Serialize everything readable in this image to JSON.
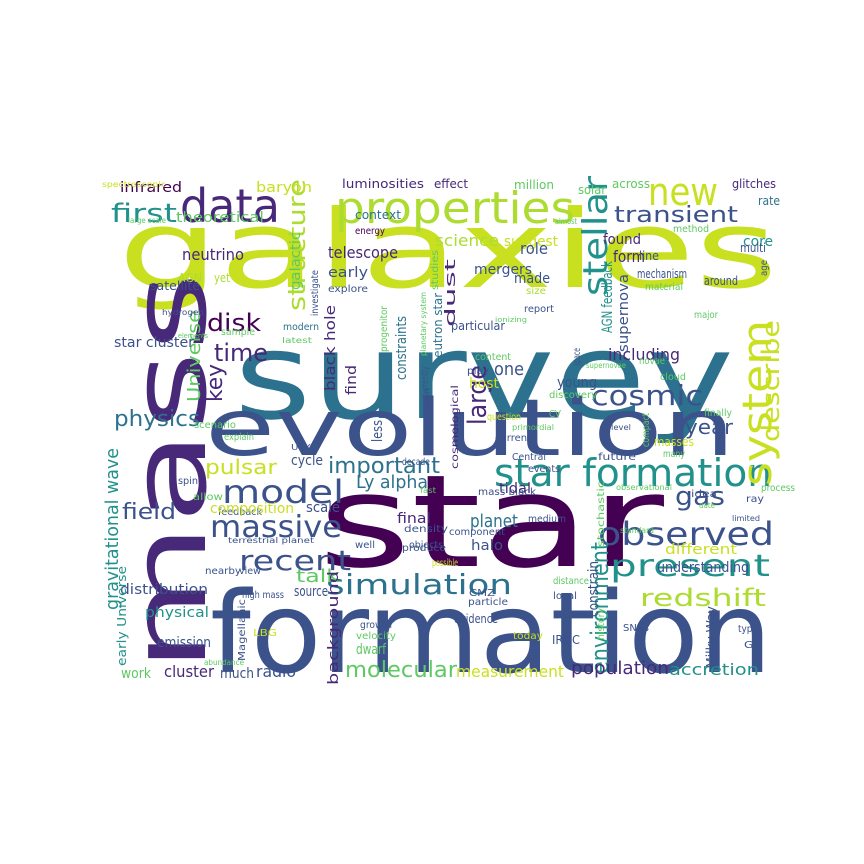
{
  "palette": {
    "yellow": "#c8e020",
    "purple": "#440154",
    "indigo": "#482878",
    "blue": "#3b528b",
    "steel": "#2c728e",
    "teal": "#21918c",
    "green": "#28ae80",
    "mint": "#5ec962",
    "lime": "#addc30"
  },
  "words": [
    {
      "text": "galaxies",
      "color": "#c8e020"
    },
    {
      "text": "survey",
      "color": "#2c728e"
    },
    {
      "text": "star",
      "color": "#440154"
    },
    {
      "text": "mass",
      "color": "#482878"
    },
    {
      "text": "formation",
      "color": "#3b528b"
    },
    {
      "text": "evolution",
      "color": "#3b528b"
    },
    {
      "text": "properties",
      "color": "#addc30"
    },
    {
      "text": "data",
      "color": "#482878"
    },
    {
      "text": "new",
      "color": "#c8e020"
    },
    {
      "text": "stellar",
      "color": "#21918c"
    },
    {
      "text": "transient",
      "color": "#3b528b"
    },
    {
      "text": "star formation",
      "color": "#21918c"
    },
    {
      "text": "system",
      "color": "#c8e020"
    },
    {
      "text": "model",
      "color": "#3b528b"
    },
    {
      "text": "observed",
      "color": "#3b528b"
    },
    {
      "text": "massive",
      "color": "#3b528b"
    },
    {
      "text": "recent",
      "color": "#3b528b"
    },
    {
      "text": "simulation",
      "color": "#2c728e"
    },
    {
      "text": "present",
      "color": "#21918c"
    },
    {
      "text": "redshift",
      "color": "#addc30"
    },
    {
      "text": "environment",
      "color": "#21918c"
    },
    {
      "text": "molecular",
      "color": "#5ec962"
    },
    {
      "text": "cosmic",
      "color": "#3b528b"
    },
    {
      "text": "large",
      "color": "#482878"
    },
    {
      "text": "structure",
      "color": "#addc30"
    },
    {
      "text": "important",
      "color": "#2c728e"
    },
    {
      "text": "gas",
      "color": "#3b528b"
    },
    {
      "text": "describe",
      "color": "#c8e020"
    },
    {
      "text": "first",
      "color": "#21918c"
    },
    {
      "text": "physics",
      "color": "#2c728e"
    },
    {
      "text": "time",
      "color": "#482878"
    },
    {
      "text": "disk",
      "color": "#440154"
    },
    {
      "text": "key",
      "color": "#482878"
    },
    {
      "text": "pulsar",
      "color": "#c8e020"
    },
    {
      "text": "field",
      "color": "#3b528b"
    },
    {
      "text": "Universe",
      "color": "#5ec962"
    },
    {
      "text": "year",
      "color": "#3b528b"
    },
    {
      "text": "Ly alpha",
      "color": "#2c728e"
    },
    {
      "text": "talk",
      "color": "#5ec962"
    },
    {
      "text": "measurement",
      "color": "#c8e020"
    },
    {
      "text": "population",
      "color": "#482878"
    },
    {
      "text": "accretion",
      "color": "#21918c"
    },
    {
      "text": "planet",
      "color": "#2c728e"
    },
    {
      "text": "gravitational wave",
      "color": "#21918c"
    },
    {
      "text": "infrared",
      "color": "#440154"
    },
    {
      "text": "baryon",
      "color": "#c8e020"
    },
    {
      "text": "luminosities",
      "color": "#482878"
    },
    {
      "text": "effect",
      "color": "#482878"
    },
    {
      "text": "million",
      "color": "#5ec962"
    },
    {
      "text": "solar",
      "color": "#5ec962"
    },
    {
      "text": "across",
      "color": "#5ec962"
    },
    {
      "text": "glitches",
      "color": "#482878"
    },
    {
      "text": "rate",
      "color": "#2c728e"
    },
    {
      "text": "theoretical",
      "color": "#5ec962"
    },
    {
      "text": "context",
      "color": "#2c728e"
    },
    {
      "text": "science",
      "color": "#addc30"
    },
    {
      "text": "suggest",
      "color": "#c8e020"
    },
    {
      "text": "found",
      "color": "#482878"
    },
    {
      "text": "form",
      "color": "#482878"
    },
    {
      "text": "core",
      "color": "#21918c"
    },
    {
      "text": "method",
      "color": "#5ec962"
    },
    {
      "text": "large scale",
      "color": "#5ec962"
    },
    {
      "text": "spectroscopic",
      "color": "#c8e020"
    },
    {
      "text": "energy",
      "color": "#440154"
    },
    {
      "text": "almost",
      "color": "#5ec962"
    },
    {
      "text": "neutrino",
      "color": "#482878"
    },
    {
      "text": "telescope",
      "color": "#482878"
    },
    {
      "text": "role",
      "color": "#3b528b"
    },
    {
      "text": "AGN feedback",
      "color": "#21918c"
    },
    {
      "text": "line",
      "color": "#3b528b"
    },
    {
      "text": "multi",
      "color": "#3b528b"
    },
    {
      "text": "AGN",
      "color": "#addc30"
    },
    {
      "text": "galactic",
      "color": "#5ec962"
    },
    {
      "text": "investigate",
      "color": "#3b528b"
    },
    {
      "text": "dust",
      "color": "#482878"
    },
    {
      "text": "yet",
      "color": "#addc30"
    },
    {
      "text": "early",
      "color": "#3b528b"
    },
    {
      "text": "mergers",
      "color": "#3b528b"
    },
    {
      "text": "supernova",
      "color": "#3b528b"
    },
    {
      "text": "mechanism",
      "color": "#3b528b"
    },
    {
      "text": "age",
      "color": "#3b528b"
    },
    {
      "text": "satellite",
      "color": "#3b528b"
    },
    {
      "text": "explore",
      "color": "#3b528b"
    },
    {
      "text": "made",
      "color": "#3b528b"
    },
    {
      "text": "studies",
      "color": "#5ec962"
    },
    {
      "text": "material",
      "color": "#5ec962"
    },
    {
      "text": "around",
      "color": "#3b528b"
    },
    {
      "text": "size",
      "color": "#addc30"
    },
    {
      "text": "hydrogen",
      "color": "#3b528b"
    },
    {
      "text": "report",
      "color": "#3b528b"
    },
    {
      "text": "major",
      "color": "#5ec962"
    },
    {
      "text": "elements",
      "color": "#5ec962"
    },
    {
      "text": "sample",
      "color": "#5ec962"
    },
    {
      "text": "ionizing",
      "color": "#5ec962"
    },
    {
      "text": "modern",
      "color": "#2c728e"
    },
    {
      "text": "star cluster",
      "color": "#3b528b"
    },
    {
      "text": "black hole",
      "color": "#482878"
    },
    {
      "text": "neutron star",
      "color": "#2c728e"
    },
    {
      "text": "progenitor",
      "color": "#5ec962"
    },
    {
      "text": "particular",
      "color": "#3b528b"
    },
    {
      "text": "latest",
      "color": "#5ec962"
    },
    {
      "text": "find",
      "color": "#482878"
    },
    {
      "text": "constraints",
      "color": "#2c728e"
    },
    {
      "text": "including",
      "color": "#482878"
    },
    {
      "text": "space",
      "color": "#3b528b"
    },
    {
      "text": "content",
      "color": "#5ec962"
    },
    {
      "text": "novae",
      "color": "#5ec962"
    },
    {
      "text": "supernovae",
      "color": "#5ec962"
    },
    {
      "text": "cloud",
      "color": "#5ec962"
    },
    {
      "text": "planetary system",
      "color": "#5ec962"
    },
    {
      "text": "one",
      "color": "#3b528b"
    },
    {
      "text": "play",
      "color": "#3b528b"
    },
    {
      "text": "young",
      "color": "#3b528b"
    },
    {
      "text": "currently",
      "color": "#3b528b"
    },
    {
      "text": "host",
      "color": "#c8e020"
    },
    {
      "text": "discovery",
      "color": "#5ec962"
    },
    {
      "text": "finally",
      "color": "#5ec962"
    },
    {
      "text": "less",
      "color": "#3b528b"
    },
    {
      "text": "question",
      "color": "#c8e020"
    },
    {
      "text": "CV",
      "color": "#5ec962"
    },
    {
      "text": "level",
      "color": "#3b528b"
    },
    {
      "text": "primordial",
      "color": "#5ec962"
    },
    {
      "text": "generation",
      "color": "#3b528b"
    },
    {
      "text": "current",
      "color": "#3b528b"
    },
    {
      "text": "compact",
      "color": "#5ec962"
    },
    {
      "text": "many",
      "color": "#5ec962"
    },
    {
      "text": "masses",
      "color": "#c8e020"
    },
    {
      "text": "scenario",
      "color": "#5ec962"
    },
    {
      "text": "explain",
      "color": "#5ec962"
    },
    {
      "text": "cosmological",
      "color": "#482878"
    },
    {
      "text": "ULX",
      "color": "#3b528b"
    },
    {
      "text": "Central",
      "color": "#3b528b"
    },
    {
      "text": "events",
      "color": "#3b528b"
    },
    {
      "text": "future",
      "color": "#3b528b"
    },
    {
      "text": "cycle",
      "color": "#3b528b"
    },
    {
      "text": "decade",
      "color": "#3b528b"
    },
    {
      "text": "tidal",
      "color": "#482878"
    },
    {
      "text": "mass black",
      "color": "#3b528b"
    },
    {
      "text": "fast",
      "color": "#5ec962"
    },
    {
      "text": "observational",
      "color": "#5ec962"
    },
    {
      "text": "process",
      "color": "#5ec962"
    },
    {
      "text": "spin",
      "color": "#3b528b"
    },
    {
      "text": "allow",
      "color": "#5ec962"
    },
    {
      "text": "idea",
      "color": "#3b528b"
    },
    {
      "text": "date",
      "color": "#5ec962"
    },
    {
      "text": "ray",
      "color": "#3b528b"
    },
    {
      "text": "scale",
      "color": "#3b528b"
    },
    {
      "text": "feedback",
      "color": "#3b528b"
    },
    {
      "text": "composition",
      "color": "#c8e020"
    },
    {
      "text": "final",
      "color": "#482878"
    },
    {
      "text": "medium",
      "color": "#3b528b"
    },
    {
      "text": "density",
      "color": "#3b528b"
    },
    {
      "text": "component",
      "color": "#3b528b"
    },
    {
      "text": "stochastic",
      "color": "#5ec962"
    },
    {
      "text": "limited",
      "color": "#3b528b"
    },
    {
      "text": "standard",
      "color": "#5ec962"
    },
    {
      "text": "different",
      "color": "#c8e020"
    },
    {
      "text": "terrestrial planet",
      "color": "#3b528b"
    },
    {
      "text": "well",
      "color": "#3b528b"
    },
    {
      "text": "halo",
      "color": "#3b528b"
    },
    {
      "text": "produce",
      "color": "#3b528b"
    },
    {
      "text": "objects",
      "color": "#3b528b"
    },
    {
      "text": "possible",
      "color": "#c8e020"
    },
    {
      "text": "understanding",
      "color": "#3b528b"
    },
    {
      "text": "distribution",
      "color": "#3b528b"
    },
    {
      "text": "nearby",
      "color": "#3b528b"
    },
    {
      "text": "view",
      "color": "#3b528b"
    },
    {
      "text": "distance",
      "color": "#5ec962"
    },
    {
      "text": "source",
      "color": "#3b528b"
    },
    {
      "text": "constrain",
      "color": "#3b528b"
    },
    {
      "text": "high mass",
      "color": "#3b528b"
    },
    {
      "text": "local",
      "color": "#3b528b"
    },
    {
      "text": "physical",
      "color": "#21918c"
    },
    {
      "text": "CMZ",
      "color": "#3b528b"
    },
    {
      "text": "particle",
      "color": "#3b528b"
    },
    {
      "text": "background",
      "color": "#482878"
    },
    {
      "text": "history",
      "color": "#5ec962"
    },
    {
      "text": "SNRs",
      "color": "#3b528b"
    },
    {
      "text": "evidence",
      "color": "#3b528b"
    },
    {
      "text": "growth",
      "color": "#3b528b"
    },
    {
      "text": "velocity",
      "color": "#5ec962"
    },
    {
      "text": "today",
      "color": "#c8e020"
    },
    {
      "text": "IRDC",
      "color": "#3b528b"
    },
    {
      "text": "Milky Way",
      "color": "#3b528b"
    },
    {
      "text": "type",
      "color": "#3b528b"
    },
    {
      "text": "GC",
      "color": "#3b528b"
    },
    {
      "text": "emission",
      "color": "#3b528b"
    },
    {
      "text": "early Universe",
      "color": "#21918c"
    },
    {
      "text": "Magellanic",
      "color": "#3b528b"
    },
    {
      "text": "LBG",
      "color": "#c8e020"
    },
    {
      "text": "abundance",
      "color": "#5ec962"
    },
    {
      "text": "dwarf",
      "color": "#5ec962"
    },
    {
      "text": "radio",
      "color": "#3b528b"
    },
    {
      "text": "work",
      "color": "#5ec962"
    },
    {
      "text": "cluster",
      "color": "#482878"
    },
    {
      "text": "much",
      "color": "#3b528b"
    }
  ]
}
